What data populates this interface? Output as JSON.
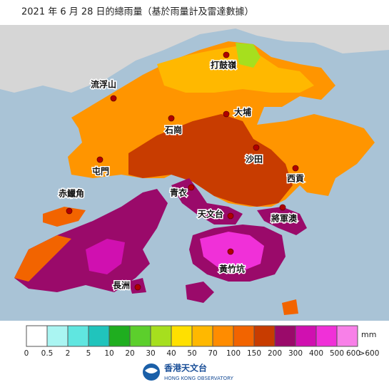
{
  "title": "2021 年 6 月 28 日的總雨量（基於雨量計及雷達數據）",
  "places": [
    {
      "label": "打鼓嶺"
    },
    {
      "label": "流浮山"
    },
    {
      "label": "大埔"
    },
    {
      "label": "石崗"
    },
    {
      "label": "屯門"
    },
    {
      "label": "沙田"
    },
    {
      "label": "西貢"
    },
    {
      "label": "青衣"
    },
    {
      "label": "赤鱲角"
    },
    {
      "label": "天文台"
    },
    {
      "label": "將軍澳"
    },
    {
      "label": "黃竹坑"
    },
    {
      "label": "長洲"
    }
  ],
  "legend": {
    "unit": "mm",
    "colors": [
      "#ffffff",
      "#aaf5f2",
      "#60e6e0",
      "#20c4bc",
      "#1fae1f",
      "#5ccf2c",
      "#a6df1e",
      "#ffe000",
      "#ffb800",
      "#ff8c00",
      "#f26400",
      "#c83c00",
      "#9a0a6a",
      "#d010b0",
      "#f030d8",
      "#f880e8"
    ],
    "labels": [
      "0",
      "0.5",
      "2",
      "5",
      "10",
      "20",
      "30",
      "40",
      "50",
      "70",
      "100",
      "150",
      "200",
      "300",
      "400",
      "500",
      "600",
      ">600"
    ]
  },
  "footer": {
    "name_zh": "香港天文台",
    "name_en": "HONG KONG OBSERVATORY"
  }
}
